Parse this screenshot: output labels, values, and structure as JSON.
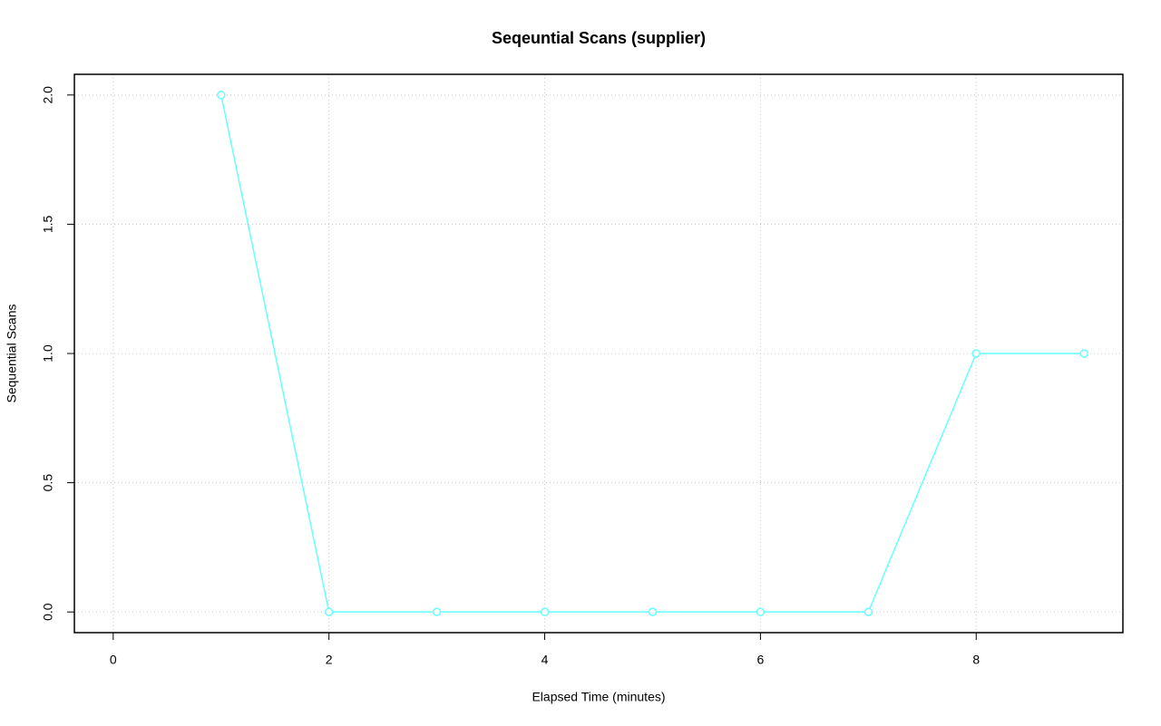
{
  "chart_data": {
    "type": "line",
    "title": "Seqeuntial Scans (supplier)",
    "xlabel": "Elapsed Time (minutes)",
    "ylabel": "Sequential Scans",
    "x": [
      1,
      2,
      3,
      4,
      5,
      6,
      7,
      8,
      9
    ],
    "series": [
      {
        "color": "#66ffff",
        "values": [
          2,
          0,
          0,
          0,
          0,
          0,
          0,
          1,
          1
        ]
      }
    ],
    "xlim": [
      -0.36,
      9.36
    ],
    "ylim": [
      -0.08,
      2.08
    ],
    "xticks": [
      0,
      2,
      4,
      6,
      8
    ],
    "yticks": [
      {
        "value": 0,
        "label": "0.0"
      },
      {
        "value": 0.5,
        "label": "0.5"
      },
      {
        "value": 1,
        "label": "1.0"
      },
      {
        "value": 1.5,
        "label": "1.5"
      },
      {
        "value": 2,
        "label": "2.0"
      }
    ],
    "grid": true
  }
}
